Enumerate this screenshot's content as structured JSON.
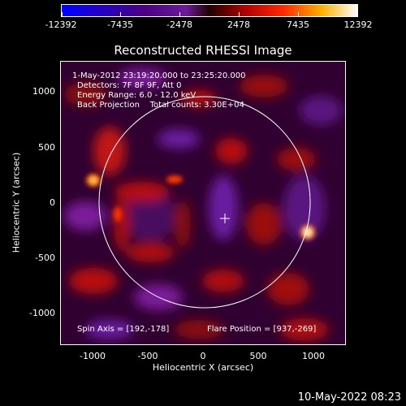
{
  "colorbar": {
    "tick_labels": [
      "-12392",
      "-7435",
      "-2478",
      "2478",
      "7435",
      "12392"
    ]
  },
  "title": "Reconstructed RHESSI Image",
  "info_lines": [
    "1-May-2012 23:19:20.000 to 23:25:20.000",
    "Detectors: 7F 8F 9F, Att 0",
    "Energy Range: 6.0 - 12.0 keV",
    "Back Projection    Total counts: 3.30E+04"
  ],
  "bottom_left_text": "Spin Axis = [192,-178]",
  "bottom_right_text": "Flare Position = [937,-269]",
  "x_axis": {
    "label": "Heliocentric X (arcsec)",
    "ticks": [
      "-1000",
      "-500",
      "0",
      "500",
      "1000"
    ]
  },
  "y_axis": {
    "label": "Heliocentric Y (arcsec)",
    "ticks": [
      "1000",
      "500",
      "0",
      "-500",
      "-1000"
    ]
  },
  "footer_date": "10-May-2022 08:23"
}
